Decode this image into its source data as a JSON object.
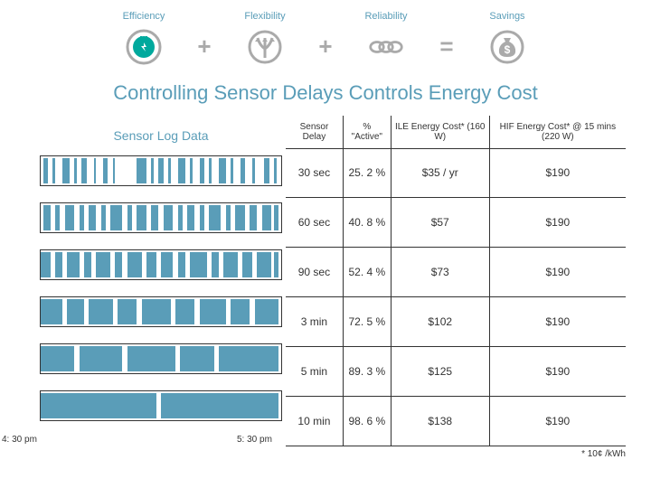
{
  "features": [
    {
      "label": "Efficiency"
    },
    {
      "label": "Flexibility"
    },
    {
      "label": "Reliability"
    },
    {
      "label": "Savings"
    }
  ],
  "ops": [
    "+",
    "+",
    "="
  ],
  "icon_colors": {
    "accent": "#00a99d",
    "grey": "#aaaaaa"
  },
  "headline": "Controlling Sensor Delays Controls  Energy Cost",
  "left_heading": "Sensor Log Data",
  "time_start": "4: 30 pm",
  "time_mid": "5: 30 pm",
  "footnote": "* 10¢ /kWh",
  "table": {
    "headers": [
      "Sensor Delay",
      "% \"Active\"",
      "ILE Energy Cost* (160 W)",
      "HIF Energy Cost* @ 15 mins (220 W)"
    ],
    "rows": [
      [
        "30 sec",
        "25. 2 %",
        "$35 / yr",
        "$190"
      ],
      [
        "60 sec",
        "40. 8 %",
        "$57",
        "$190"
      ],
      [
        "90 sec",
        "52. 4 %",
        "$73",
        "$190"
      ],
      [
        "3 min",
        "72. 5 %",
        "$102",
        "$190"
      ],
      [
        "5 min",
        "89. 3 %",
        "$125",
        "$190"
      ],
      [
        "10 min",
        "98. 6 %",
        "$138",
        "$190"
      ]
    ]
  },
  "barcodes": {
    "bar_color": "#5a9db8",
    "rows": [
      {
        "fill": 25.2,
        "pattern": [
          [
            1,
            2
          ],
          [
            5,
            1
          ],
          [
            9,
            3
          ],
          [
            14,
            1
          ],
          [
            17,
            2
          ],
          [
            22,
            1
          ],
          [
            26,
            2
          ],
          [
            30,
            1
          ],
          [
            40,
            4
          ],
          [
            46,
            1
          ],
          [
            49,
            2
          ],
          [
            53,
            1
          ],
          [
            57,
            3
          ],
          [
            62,
            1
          ],
          [
            66,
            2
          ],
          [
            70,
            1
          ],
          [
            74,
            3
          ],
          [
            79,
            1
          ],
          [
            83,
            2
          ],
          [
            88,
            1
          ],
          [
            93,
            2
          ],
          [
            97,
            1
          ]
        ]
      },
      {
        "fill": 40.8,
        "pattern": [
          [
            1,
            3
          ],
          [
            6,
            2
          ],
          [
            10,
            4
          ],
          [
            16,
            2
          ],
          [
            20,
            3
          ],
          [
            25,
            2
          ],
          [
            29,
            5
          ],
          [
            36,
            2
          ],
          [
            40,
            4
          ],
          [
            46,
            3
          ],
          [
            51,
            4
          ],
          [
            57,
            2
          ],
          [
            61,
            3
          ],
          [
            66,
            2
          ],
          [
            70,
            5
          ],
          [
            77,
            2
          ],
          [
            81,
            4
          ],
          [
            87,
            3
          ],
          [
            92,
            4
          ],
          [
            97,
            2
          ]
        ]
      },
      {
        "fill": 52.4,
        "pattern": [
          [
            0,
            4
          ],
          [
            6,
            3
          ],
          [
            11,
            5
          ],
          [
            18,
            3
          ],
          [
            23,
            6
          ],
          [
            31,
            3
          ],
          [
            36,
            6
          ],
          [
            44,
            4
          ],
          [
            50,
            5
          ],
          [
            57,
            3
          ],
          [
            62,
            7
          ],
          [
            71,
            3
          ],
          [
            76,
            6
          ],
          [
            84,
            4
          ],
          [
            90,
            6
          ],
          [
            97,
            2
          ]
        ]
      },
      {
        "fill": 72.5,
        "pattern": [
          [
            0,
            9
          ],
          [
            11,
            7
          ],
          [
            20,
            10
          ],
          [
            32,
            8
          ],
          [
            42,
            12
          ],
          [
            56,
            8
          ],
          [
            66,
            11
          ],
          [
            79,
            8
          ],
          [
            89,
            10
          ]
        ]
      },
      {
        "fill": 89.3,
        "pattern": [
          [
            0,
            14
          ],
          [
            16,
            18
          ],
          [
            36,
            20
          ],
          [
            58,
            14
          ],
          [
            74,
            25
          ]
        ]
      },
      {
        "fill": 98.6,
        "pattern": [
          [
            0,
            48
          ],
          [
            50,
            49
          ]
        ]
      }
    ]
  }
}
